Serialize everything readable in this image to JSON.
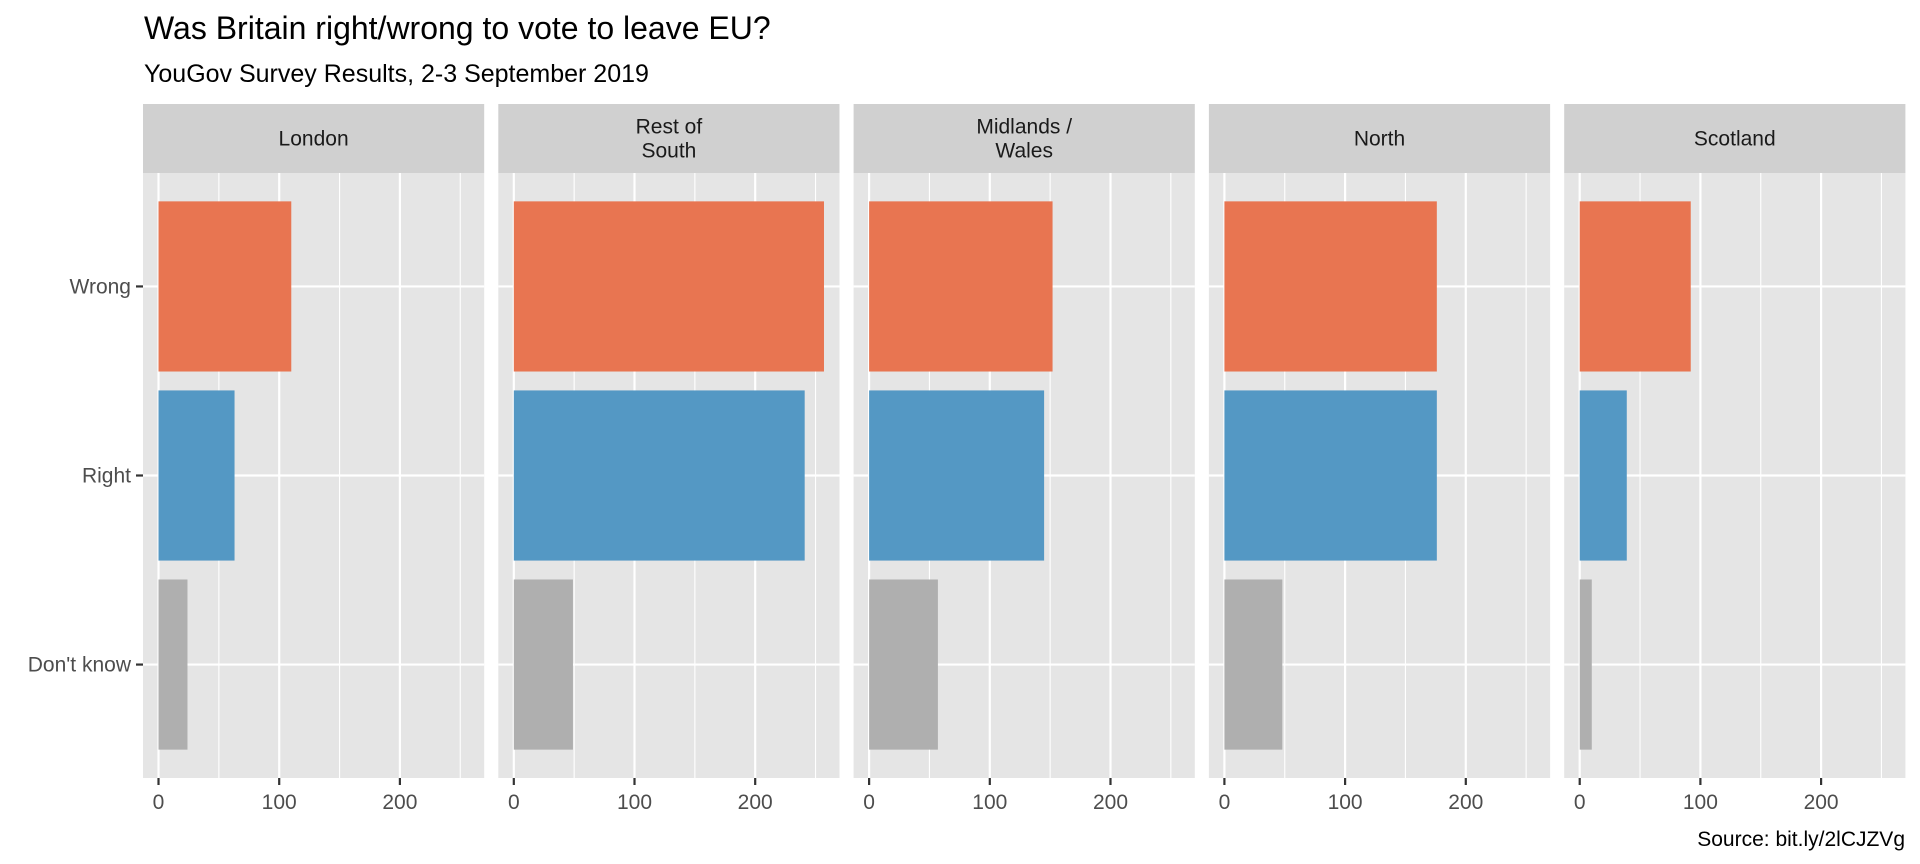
{
  "chart_data": {
    "type": "bar",
    "orientation": "horizontal",
    "title": "Was Britain right/wrong to vote to leave EU?",
    "subtitle": "YouGov Survey Results, 2-3 September 2019",
    "caption": "Source: bit.ly/2lCJZVg",
    "xlabel": "",
    "ylabel": "",
    "categories": [
      "Wrong",
      "Right",
      "Don't know"
    ],
    "category_colors": {
      "Wrong": "#E87551",
      "Right": "#5498C4",
      "Don't know": "#AFAFAF"
    },
    "facets": [
      {
        "label_lines": [
          "London"
        ],
        "values": [
          110,
          63,
          24
        ]
      },
      {
        "label_lines": [
          "Rest of",
          "South"
        ],
        "values": [
          257,
          241,
          49
        ]
      },
      {
        "label_lines": [
          "Midlands /",
          "Wales"
        ],
        "values": [
          152,
          145,
          57
        ]
      },
      {
        "label_lines": [
          "North"
        ],
        "values": [
          176,
          176,
          48
        ]
      },
      {
        "label_lines": [
          "Scotland"
        ],
        "values": [
          92,
          39,
          10
        ]
      }
    ],
    "x_ticks": [
      0,
      100,
      200
    ],
    "x_minor_ticks": [
      50,
      150,
      250
    ],
    "xlim": [
      -12.85,
      269.85
    ],
    "grid": true,
    "legend": "none",
    "colors": {
      "panel_bg": "#E5E5E5",
      "strip_bg": "#D0D0D0",
      "grid": "#FFFFFF"
    }
  }
}
